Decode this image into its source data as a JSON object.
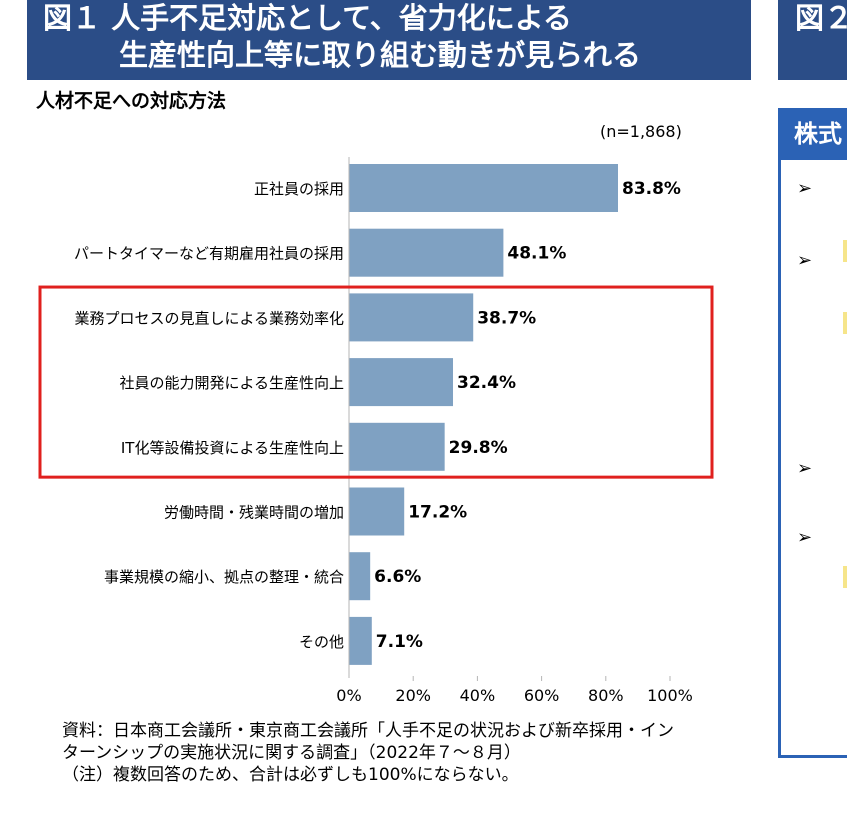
{
  "header_left": {
    "line1": "図１ 人手不足対応として、省力化による",
    "line2": "生産性向上等に取り組む動きが見られる"
  },
  "header_right": {
    "line1": "図２"
  },
  "subtitle": "人材不足への対応方法",
  "sample_label": "(n=1,868)",
  "right_panel": {
    "heading": "株式"
  },
  "note": {
    "line1": "資料：日本商工会議所・東京商工会議所「人手不足の状況および新卒採用・イン",
    "line2": "ターンシップの実施状況に関する調査」（2022年７～８月）",
    "line3": "（注）複数回答のため、合計は必ずしも100%にならない。"
  },
  "colors": {
    "header": "#2b4d87",
    "bar": "#7fa1c2",
    "highlight": "#e0201e",
    "panel": "#2b62b5"
  },
  "chart_data": {
    "type": "bar",
    "orientation": "horizontal",
    "categories": [
      "正社員の採用",
      "パートタイマーなど有期雇用社員の採用",
      "業務プロセスの見直しによる業務効率化",
      "社員の能力開発による生産性向上",
      "IT化等設備投資による生産性向上",
      "労働時間・残業時間の増加",
      "事業規模の縮小、拠点の整理・統合",
      "その他"
    ],
    "values": [
      83.8,
      48.1,
      38.7,
      32.4,
      29.8,
      17.2,
      6.6,
      7.1
    ],
    "value_labels": [
      "83.8%",
      "48.1%",
      "38.7%",
      "32.4%",
      "29.8%",
      "17.2%",
      "6.6%",
      "7.1%"
    ],
    "xlim": [
      0,
      100
    ],
    "xticks": [
      "0%",
      "20%",
      "40%",
      "60%",
      "80%",
      "100%"
    ],
    "highlighted": [
      2,
      3,
      4
    ],
    "grid": false
  }
}
